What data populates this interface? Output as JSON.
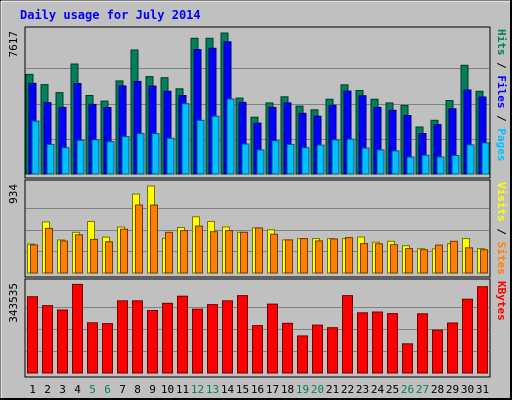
{
  "chart_data": {
    "type": "bar",
    "title": "Daily usage for July 2014",
    "colors": {
      "hits": "#00805c",
      "files": "#0000ff",
      "pages": "#00c0ff",
      "visits": "#ffff00",
      "sites": "#ff8000",
      "kbytes": "#ff0000",
      "title": "#0000ff",
      "weekday_label": "#000000",
      "weekend_label": "#00805c",
      "background": "#c0c0c0",
      "gridline": "#808080"
    },
    "categories": [
      "1",
      "2",
      "3",
      "4",
      "5",
      "6",
      "7",
      "8",
      "9",
      "10",
      "11",
      "12",
      "13",
      "14",
      "15",
      "16",
      "17",
      "18",
      "19",
      "20",
      "21",
      "22",
      "23",
      "24",
      "25",
      "26",
      "27",
      "28",
      "29",
      "30",
      "31"
    ],
    "weekend_days": [
      "5",
      "6",
      "12",
      "13",
      "19",
      "20",
      "26",
      "27"
    ],
    "panels": [
      {
        "name": "hits-files-pages",
        "scale_label": "7617",
        "ylim": [
          0,
          7617
        ],
        "legend": [
          {
            "label": "Pages",
            "color": "#00c0ff"
          },
          {
            "label": "Files",
            "color": "#0000ff"
          },
          {
            "label": "Hits",
            "color": "#00805c"
          }
        ],
        "series": [
          {
            "name": "Hits",
            "values": [
              5380,
              4830,
              4400,
              5940,
              4240,
              3940,
              5030,
              6700,
              5260,
              5200,
              4600,
              7330,
              7330,
              7617,
              4100,
              3070,
              3840,
              4170,
              3670,
              3470,
              4040,
              4820,
              4510,
              4040,
              3840,
              3700,
              2540,
              2900,
              3970,
              5870,
              4470
            ]
          },
          {
            "name": "Files",
            "values": [
              4900,
              3850,
              3600,
              4890,
              3760,
              3590,
              4760,
              5000,
              4750,
              4470,
              4240,
              6720,
              6790,
              7140,
              3870,
              2750,
              3600,
              3840,
              3280,
              3120,
              3710,
              4480,
              4230,
              3600,
              3440,
              3160,
              2190,
              2670,
              3520,
              4540,
              4160
            ]
          },
          {
            "name": "Pages",
            "values": [
              2860,
              1600,
              1420,
              1820,
              1850,
              1750,
              2020,
              2180,
              2180,
              1930,
              3800,
              2900,
              3120,
              4050,
              1620,
              1300,
              1800,
              1600,
              1420,
              1560,
              1840,
              1880,
              1400,
              1300,
              1250,
              920,
              1010,
              920,
              1000,
              1570,
              1680
            ]
          }
        ]
      },
      {
        "name": "visits-sites",
        "scale_label": "934",
        "ylim": [
          0,
          934
        ],
        "legend": [
          {
            "label": "Sites",
            "color": "#ff8000"
          },
          {
            "label": "Visits",
            "color": "#ffff00"
          }
        ],
        "series": [
          {
            "name": "Visits",
            "values": [
              310,
              549,
              355,
              437,
              553,
              385,
              494,
              847,
              934,
              372,
              488,
              603,
              553,
              494,
              437,
              484,
              464,
              355,
              369,
              369,
              369,
              369,
              387,
              331,
              340,
              293,
              261,
              260,
              313,
              369,
              262
            ]
          },
          {
            "name": "Sites",
            "values": [
              302,
              479,
              344,
              410,
              361,
              335,
              470,
              730,
              729,
              437,
              455,
              503,
              443,
              455,
              437,
              484,
              415,
              355,
              369,
              345,
              365,
              380,
              316,
              313,
              304,
              262,
              250,
              300,
              340,
              271,
              250
            ]
          }
        ]
      },
      {
        "name": "kbytes",
        "scale_label": "343535",
        "ylim": [
          0,
          343535
        ],
        "legend": [
          {
            "label": "KBytes",
            "color": "#ff0000"
          }
        ],
        "series": [
          {
            "name": "KBytes",
            "values": [
              298000,
              263000,
              246000,
              346000,
              196000,
              193000,
              282000,
              282000,
              244000,
              272000,
              300000,
              249000,
              267000,
              282000,
              302000,
              185000,
              269000,
              194000,
              145000,
              187000,
              177000,
              302000,
              235000,
              238000,
              232000,
              114000,
              231000,
              167000,
              195000,
              288000,
              337000
            ]
          }
        ]
      }
    ]
  }
}
